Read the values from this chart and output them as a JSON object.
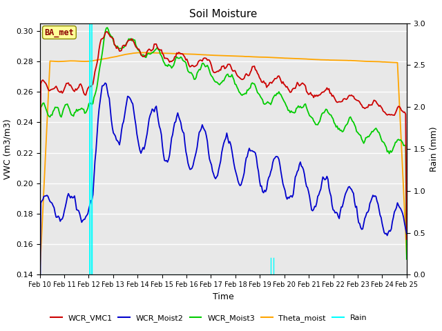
{
  "title": "Soil Moisture",
  "xlabel": "Time",
  "ylabel_left": "VWC (m3/m3)",
  "ylabel_right": "Rain (mm)",
  "ylim_left": [
    0.14,
    0.305
  ],
  "ylim_right": [
    0.0,
    3.0
  ],
  "bg_color": "#e8e8e8",
  "fig_color": "#ffffff",
  "annotation_text": "BA_met",
  "annotation_color": "#8B0000",
  "annotation_bg": "#ffff99",
  "colors": {
    "WCR_VMC1": "#cc0000",
    "WCR_Moist2": "#0000cc",
    "WCR_Moist3": "#00cc00",
    "Theta_moist": "#ffa500",
    "Rain": "#00ffff"
  },
  "x_tick_labels": [
    "Feb 10",
    "Feb 11",
    "Feb 12",
    "Feb 13",
    "Feb 14",
    "Feb 15",
    "Feb 16",
    "Feb 17",
    "Feb 18",
    "Feb 19",
    "Feb 20",
    "Feb 21",
    "Feb 22",
    "Feb 23",
    "Feb 24",
    "Feb 25"
  ],
  "yticks_left": [
    0.14,
    0.16,
    0.18,
    0.2,
    0.22,
    0.24,
    0.26,
    0.28,
    0.3
  ],
  "yticks_right": [
    0.0,
    0.5,
    1.0,
    1.5,
    2.0,
    2.5,
    3.0
  ]
}
